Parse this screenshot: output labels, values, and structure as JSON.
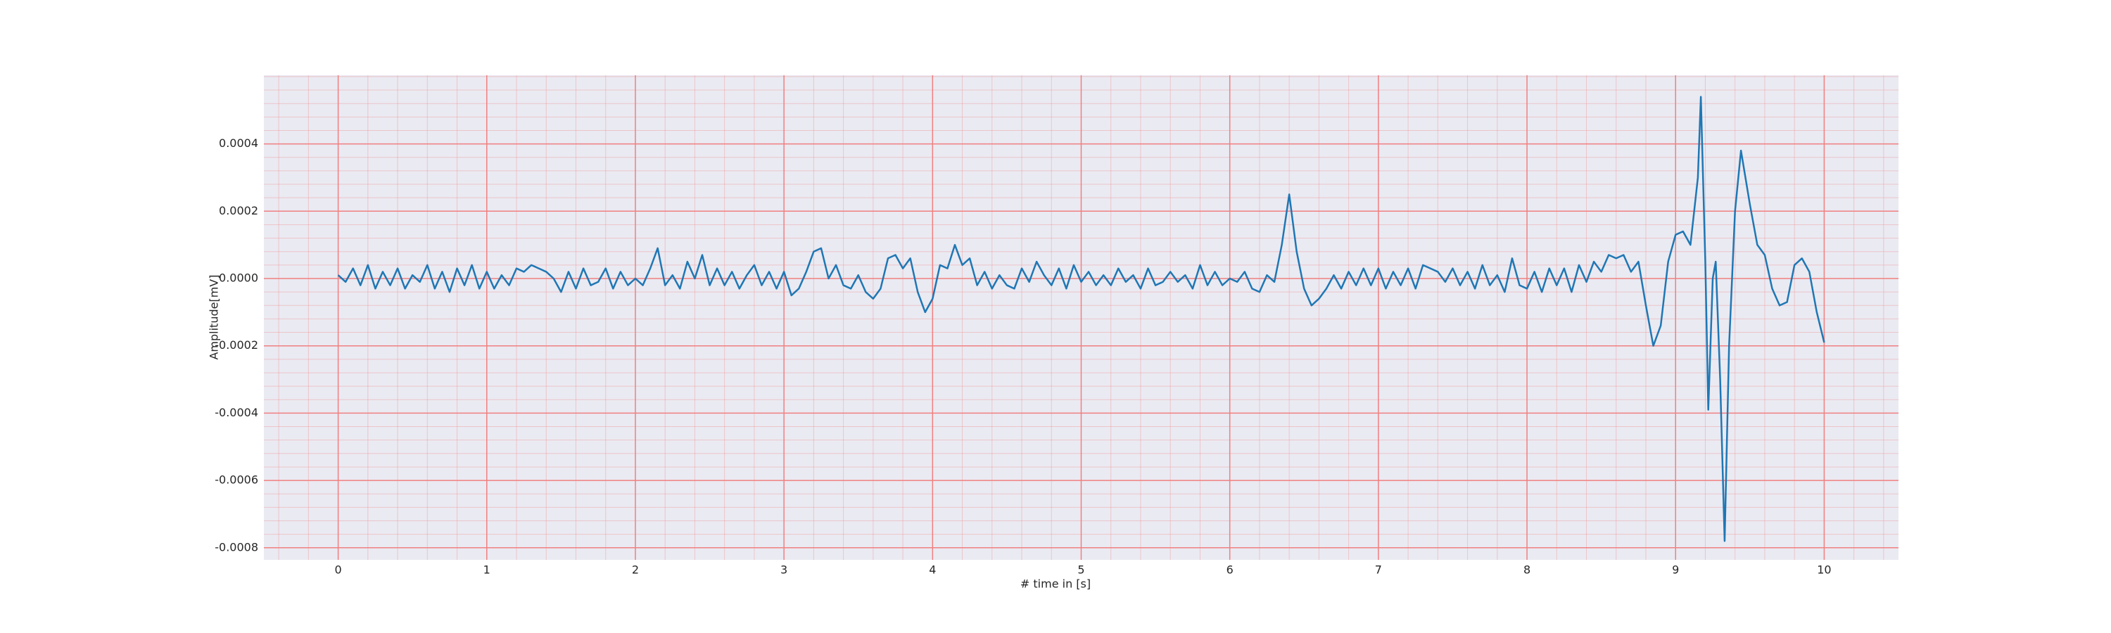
{
  "chart_data": {
    "type": "line",
    "xlabel": "# time in [s]",
    "ylabel": "Amplitude[mV]",
    "color": "#1f77b4",
    "background": "#eaeaf2",
    "grid": true,
    "grid_color": "#f08080",
    "minor_grid": true,
    "xlim": [
      -0.5,
      10.5
    ],
    "xticks": [
      0,
      1,
      2,
      3,
      4,
      5,
      6,
      7,
      8,
      9,
      10
    ],
    "ylim": [
      -0.000836,
      0.000604
    ],
    "yticks": [
      -0.0008,
      -0.0006,
      -0.0004,
      -0.0002,
      {
        "value": 0,
        "label": "0.0000"
      },
      0.0002,
      0.0004
    ],
    "x": [
      0,
      0.05,
      0.1,
      0.15,
      0.2,
      0.25,
      0.3,
      0.35,
      0.4,
      0.45,
      0.5,
      0.55,
      0.6,
      0.65,
      0.7,
      0.75,
      0.8,
      0.85,
      0.9,
      0.95,
      1,
      1.05,
      1.1,
      1.15,
      1.2,
      1.25,
      1.3,
      1.35,
      1.4,
      1.45,
      1.5,
      1.55,
      1.6,
      1.65,
      1.7,
      1.75,
      1.8,
      1.85,
      1.9,
      1.95,
      2,
      2.05,
      2.1,
      2.15,
      2.2,
      2.25,
      2.3,
      2.35,
      2.4,
      2.45,
      2.5,
      2.55,
      2.6,
      2.65,
      2.7,
      2.75,
      2.8,
      2.85,
      2.9,
      2.95,
      3,
      3.05,
      3.1,
      3.15,
      3.2,
      3.25,
      3.3,
      3.35,
      3.4,
      3.45,
      3.5,
      3.55,
      3.6,
      3.65,
      3.7,
      3.75,
      3.8,
      3.85,
      3.9,
      3.95,
      4,
      4.05,
      4.1,
      4.15,
      4.2,
      4.25,
      4.3,
      4.35,
      4.4,
      4.45,
      4.5,
      4.55,
      4.6,
      4.65,
      4.7,
      4.75,
      4.8,
      4.85,
      4.9,
      4.95,
      5,
      5.05,
      5.1,
      5.15,
      5.2,
      5.25,
      5.3,
      5.35,
      5.4,
      5.45,
      5.5,
      5.55,
      5.6,
      5.65,
      5.7,
      5.75,
      5.8,
      5.85,
      5.9,
      5.95,
      6,
      6.05,
      6.1,
      6.15,
      6.2,
      6.25,
      6.3,
      6.35,
      6.4,
      6.45,
      6.5,
      6.55,
      6.6,
      6.65,
      6.7,
      6.75,
      6.8,
      6.85,
      6.9,
      6.95,
      7,
      7.05,
      7.1,
      7.15,
      7.2,
      7.25,
      7.3,
      7.35,
      7.4,
      7.45,
      7.5,
      7.55,
      7.6,
      7.65,
      7.7,
      7.75,
      7.8,
      7.85,
      7.9,
      7.95,
      8,
      8.05,
      8.1,
      8.15,
      8.2,
      8.25,
      8.3,
      8.35,
      8.4,
      8.45,
      8.5,
      8.55,
      8.6,
      8.65,
      8.7,
      8.75,
      8.8,
      8.85,
      8.9,
      8.95,
      9,
      9.05,
      9.1,
      9.15,
      9.17,
      9.2,
      9.22,
      9.25,
      9.27,
      9.3,
      9.33,
      9.36,
      9.4,
      9.44,
      9.5,
      9.55,
      9.6,
      9.65,
      9.7,
      9.75,
      9.8,
      9.85,
      9.9,
      9.95,
      10
    ],
    "values": [
      1e-05,
      -1e-05,
      3e-05,
      -2e-05,
      4e-05,
      -3e-05,
      2e-05,
      -2e-05,
      3e-05,
      -3e-05,
      1e-05,
      -1e-05,
      4e-05,
      -3e-05,
      2e-05,
      -4e-05,
      3e-05,
      -2e-05,
      4e-05,
      -3e-05,
      2e-05,
      -3e-05,
      1e-05,
      -2e-05,
      3e-05,
      2e-05,
      4e-05,
      3e-05,
      2e-05,
      0,
      -4e-05,
      2e-05,
      -3e-05,
      3e-05,
      -2e-05,
      -1e-05,
      3e-05,
      -3e-05,
      2e-05,
      -2e-05,
      0,
      -2e-05,
      3e-05,
      9e-05,
      -2e-05,
      1e-05,
      -3e-05,
      5e-05,
      0,
      7e-05,
      -2e-05,
      3e-05,
      -2e-05,
      2e-05,
      -3e-05,
      1e-05,
      4e-05,
      -2e-05,
      2e-05,
      -3e-05,
      2e-05,
      -5e-05,
      -3e-05,
      2e-05,
      8e-05,
      9e-05,
      0,
      4e-05,
      -2e-05,
      -3e-05,
      1e-05,
      -4e-05,
      -6e-05,
      -3e-05,
      6e-05,
      7e-05,
      3e-05,
      6e-05,
      -4e-05,
      -0.0001,
      -6e-05,
      4e-05,
      3e-05,
      0.0001,
      4e-05,
      6e-05,
      -2e-05,
      2e-05,
      -3e-05,
      1e-05,
      -2e-05,
      -3e-05,
      3e-05,
      -1e-05,
      5e-05,
      1e-05,
      -2e-05,
      3e-05,
      -3e-05,
      4e-05,
      -1e-05,
      2e-05,
      -2e-05,
      1e-05,
      -2e-05,
      3e-05,
      -1e-05,
      1e-05,
      -3e-05,
      3e-05,
      -2e-05,
      -1e-05,
      2e-05,
      -1e-05,
      1e-05,
      -3e-05,
      4e-05,
      -2e-05,
      2e-05,
      -2e-05,
      0,
      -1e-05,
      2e-05,
      -3e-05,
      -4e-05,
      1e-05,
      -1e-05,
      0.0001,
      0.00025,
      8e-05,
      -3e-05,
      -8e-05,
      -6e-05,
      -3e-05,
      1e-05,
      -3e-05,
      2e-05,
      -2e-05,
      3e-05,
      -2e-05,
      3e-05,
      -3e-05,
      2e-05,
      -2e-05,
      3e-05,
      -3e-05,
      4e-05,
      3e-05,
      2e-05,
      -1e-05,
      3e-05,
      -2e-05,
      2e-05,
      -3e-05,
      4e-05,
      -2e-05,
      1e-05,
      -4e-05,
      6e-05,
      -2e-05,
      -3e-05,
      2e-05,
      -4e-05,
      3e-05,
      -2e-05,
      3e-05,
      -4e-05,
      4e-05,
      -1e-05,
      5e-05,
      2e-05,
      7e-05,
      6e-05,
      7e-05,
      2e-05,
      5e-05,
      -8e-05,
      -0.0002,
      -0.00014,
      5e-05,
      0.00013,
      0.00014,
      0.0001,
      0.0003,
      0.00054,
      5e-05,
      -0.00039,
      0,
      5e-05,
      -0.0003,
      -0.00078,
      -0.0002,
      0.0002,
      0.00038,
      0.00022,
      0.0001,
      7e-05,
      -3e-05,
      -8e-05,
      -7e-05,
      4e-05,
      6e-05,
      2e-05,
      -0.0001,
      -0.00019
    ]
  }
}
